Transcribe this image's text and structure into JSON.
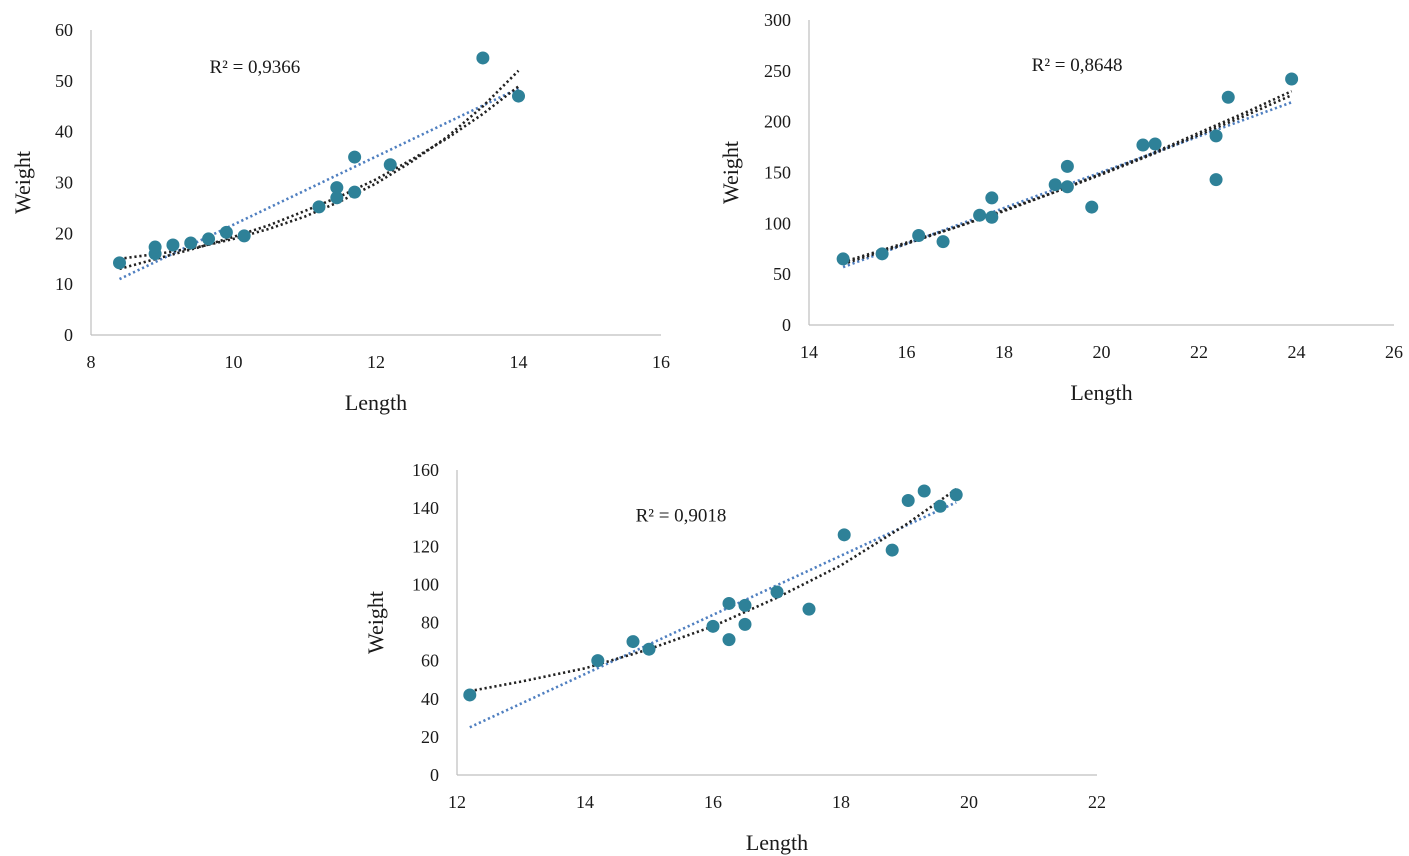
{
  "chart_data": [
    {
      "type": "scatter",
      "xlabel": "Length",
      "ylabel": "Weight",
      "xlim": [
        8,
        16
      ],
      "ylim": [
        0,
        60
      ],
      "xticks": [
        "8",
        "10",
        "12",
        "14",
        "16"
      ],
      "yticks": [
        "0",
        "10",
        "20",
        "30",
        "40",
        "50",
        "60"
      ],
      "annotation": "R² = 0,9366",
      "grid": false,
      "series": [
        {
          "x": [
            8.4,
            8.9,
            8.9,
            9.15,
            9.4,
            9.65,
            9.9,
            10.15,
            11.2,
            11.45,
            11.45,
            11.7,
            11.7,
            12.2,
            13.5,
            14.0
          ],
          "y": [
            14.2,
            16.0,
            17.3,
            17.7,
            18.1,
            18.9,
            20.2,
            19.5,
            25.2,
            27.0,
            29.0,
            35.0,
            28.1,
            33.5,
            54.5,
            47.0
          ]
        }
      ],
      "trendlines": [
        {
          "style": "blue-dotted",
          "x": [
            8.4,
            14.0
          ],
          "y": [
            11.0,
            48.5
          ]
        },
        {
          "style": "black-dotted",
          "x": [
            8.4,
            9.0,
            9.5,
            10.0,
            10.5,
            11.0,
            11.5,
            12.0,
            12.5,
            13.0,
            13.5,
            14.0
          ],
          "y": [
            13.0,
            15.3,
            17.2,
            19.3,
            21.6,
            24.4,
            27.3,
            30.6,
            34.5,
            38.7,
            43.5,
            48.9
          ]
        },
        {
          "style": "black-dotted",
          "x": [
            8.4,
            9.0,
            9.5,
            10.0,
            10.5,
            11.0,
            11.5,
            12.0,
            12.5,
            13.0,
            13.5,
            14.0
          ],
          "y": [
            15.0,
            16.1,
            17.3,
            18.9,
            20.9,
            23.3,
            26.3,
            29.8,
            34.1,
            39.0,
            45.0,
            52.0
          ]
        }
      ]
    },
    {
      "type": "scatter",
      "xlabel": "Length",
      "ylabel": "Weight",
      "xlim": [
        14,
        26
      ],
      "ylim": [
        0,
        300
      ],
      "xticks": [
        "14",
        "16",
        "18",
        "20",
        "22",
        "24",
        "26"
      ],
      "yticks": [
        "0",
        "50",
        "100",
        "150",
        "200",
        "250",
        "300"
      ],
      "annotation": "R² = 0,8648",
      "grid": false,
      "series": [
        {
          "x": [
            14.7,
            15.5,
            16.25,
            16.75,
            17.5,
            17.75,
            17.75,
            19.05,
            19.3,
            19.3,
            19.8,
            20.85,
            21.1,
            22.35,
            22.35,
            22.6,
            23.9
          ],
          "y": [
            65,
            70,
            88,
            82,
            108,
            125,
            106,
            138,
            156,
            136,
            116,
            177,
            178,
            186,
            143,
            224,
            242
          ]
        }
      ],
      "trendlines": [
        {
          "style": "blue-dotted",
          "x": [
            14.7,
            23.9
          ],
          "y": [
            57,
            219
          ]
        },
        {
          "style": "black-dotted",
          "x": [
            14.7,
            16,
            17,
            18,
            19,
            20,
            21,
            22,
            23,
            23.9
          ],
          "y": [
            62,
            81,
            96,
            112,
            130,
            149,
            168,
            189,
            210,
            230
          ]
        },
        {
          "style": "black-dotted",
          "x": [
            14.7,
            16,
            17,
            18,
            19,
            20,
            21,
            22,
            23,
            23.9
          ],
          "y": [
            60,
            80,
            96,
            113,
            130,
            148,
            167,
            187,
            207,
            226
          ]
        }
      ]
    },
    {
      "type": "scatter",
      "xlabel": "Length",
      "ylabel": "Weight",
      "xlim": [
        12,
        22
      ],
      "ylim": [
        0,
        160
      ],
      "xticks": [
        "12",
        "14",
        "16",
        "18",
        "20",
        "22"
      ],
      "yticks": [
        "0",
        "20",
        "40",
        "60",
        "80",
        "100",
        "120",
        "140",
        "160"
      ],
      "annotation": "R² = 0,9018",
      "grid": false,
      "series": [
        {
          "x": [
            12.2,
            14.2,
            14.75,
            15.0,
            16.0,
            16.25,
            16.25,
            16.5,
            16.5,
            17.0,
            17.5,
            18.05,
            18.8,
            19.05,
            19.3,
            19.55,
            19.8
          ],
          "y": [
            42,
            60,
            70,
            66,
            78,
            71,
            90,
            89,
            79,
            96,
            87,
            126,
            118,
            144,
            149,
            141,
            147
          ]
        }
      ],
      "trendlines": [
        {
          "style": "blue-dotted",
          "x": [
            12.2,
            19.8
          ],
          "y": [
            25,
            143
          ]
        },
        {
          "style": "black-dotted",
          "x": [
            12.2,
            13,
            14,
            15,
            16,
            17,
            18,
            19,
            19.8
          ],
          "y": [
            44,
            49,
            56,
            66,
            78,
            93,
            110,
            131,
            150
          ]
        }
      ]
    }
  ]
}
